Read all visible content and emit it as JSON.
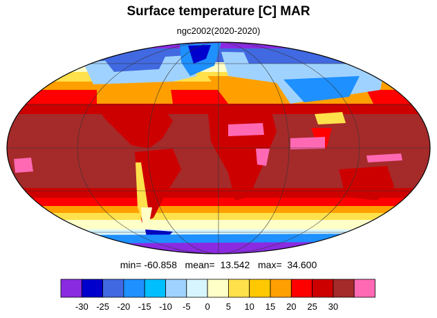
{
  "title": "Surface temperature [C] MAR",
  "subtitle": "ngc2002(2020-2020)",
  "stats": {
    "text": "min= -60.858   mean=  13.542   max=  34.600",
    "min": -60.858,
    "mean": 13.542,
    "max": 34.6
  },
  "map": {
    "projection": "mollweide",
    "variable": "Surface temperature",
    "units": "C",
    "month": "MAR"
  },
  "colorbar": {
    "colors": [
      "#8a2be2",
      "#0000cd",
      "#4169e1",
      "#1e90ff",
      "#00bfff",
      "#a0d2ff",
      "#d7f5ff",
      "#ffffc8",
      "#ffe14b",
      "#ffc800",
      "#ffa000",
      "#ff0000",
      "#cd0000",
      "#a52a2a",
      "#ff69b4"
    ],
    "tick_labels": [
      "-30",
      "-25",
      "-20",
      "-15",
      "-10",
      "-5",
      "0",
      "5",
      "10",
      "15",
      "20",
      "25",
      "30"
    ]
  }
}
